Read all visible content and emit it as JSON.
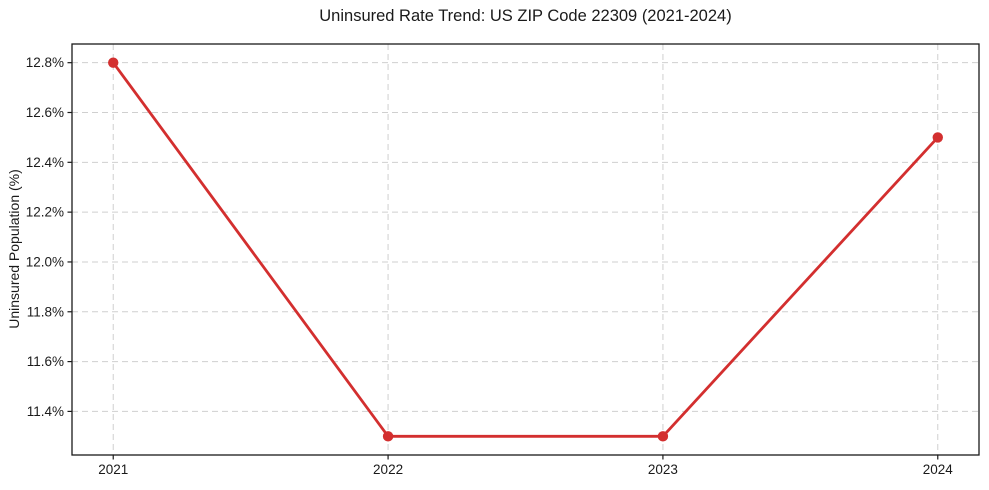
{
  "figure": {
    "background": "#ffffff"
  },
  "chart_data": {
    "type": "line",
    "title": "Uninsured Rate Trend: US ZIP Code 22309 (2021-2024)",
    "xlabel": "",
    "ylabel": "Uninsured Population (%)",
    "x": [
      2021,
      2022,
      2023,
      2024
    ],
    "series": [
      {
        "name": "uninsured-rate",
        "values": [
          12.8,
          11.3,
          11.3,
          12.5
        ]
      }
    ],
    "x_tick_labels": [
      "2021",
      "2022",
      "2023",
      "2024"
    ],
    "y_ticks": [
      11.4,
      11.6,
      11.8,
      12.0,
      12.2,
      12.4,
      12.6,
      12.8
    ],
    "y_tick_labels": [
      "11.4%",
      "11.6%",
      "11.8%",
      "12.0%",
      "12.2%",
      "12.4%",
      "12.6%",
      "12.8%"
    ],
    "xlim": [
      2020.85,
      2024.15
    ],
    "ylim": [
      11.225,
      12.875
    ],
    "grid": true,
    "grid_style": "dashed",
    "legend_position": "none",
    "line_color": "#d32f2f",
    "marker": "circle",
    "marker_radius": 5.2,
    "line_width": 2.8,
    "grid_color": "#cfcfcf",
    "axis_color": "#1a1a1a",
    "text_color": "#1a1a1a"
  }
}
